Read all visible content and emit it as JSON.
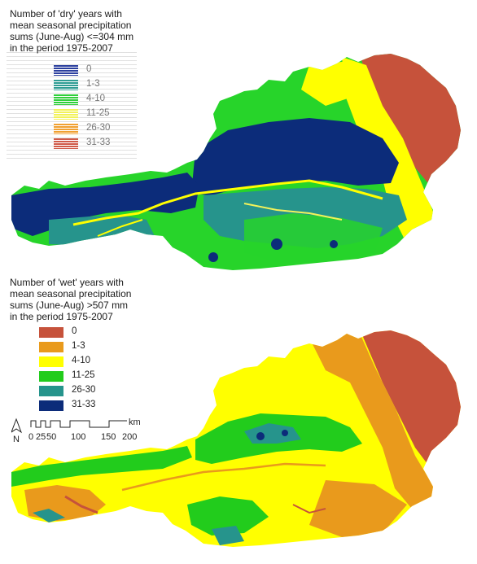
{
  "dry_map": {
    "title_lines": [
      "Number of 'dry' years with",
      "mean seasonal precipitation",
      "sums (June-Aug) <=304 mm",
      "in the period 1975-2007"
    ],
    "legend": [
      {
        "label": "0",
        "color": "#2b3f9e"
      },
      {
        "label": "1-3",
        "color": "#2e9c93"
      },
      {
        "label": "4-10",
        "color": "#2ecf3a"
      },
      {
        "label": "11-25",
        "color": "#f2f25a"
      },
      {
        "label": "26-30",
        "color": "#f0a030"
      },
      {
        "label": "31-33",
        "color": "#d05a48"
      }
    ]
  },
  "wet_map": {
    "title_lines": [
      "Number of 'wet' years with",
      "mean seasonal precipitation",
      "sums (June-Aug) >507 mm",
      "in the period 1975-2007"
    ],
    "legend": [
      {
        "label": "0",
        "color": "#c6523b"
      },
      {
        "label": "1-3",
        "color": "#e99a1c"
      },
      {
        "label": "4-10",
        "color": "#ffff00"
      },
      {
        "label": "11-25",
        "color": "#22cc1c"
      },
      {
        "label": "26-30",
        "color": "#26948c"
      },
      {
        "label": "31-33",
        "color": "#0c2c7a"
      }
    ]
  },
  "scale_bar": {
    "north_label": "N",
    "unit": "km",
    "ticks": [
      "0",
      "25",
      "50",
      "100",
      "150",
      "200"
    ]
  }
}
